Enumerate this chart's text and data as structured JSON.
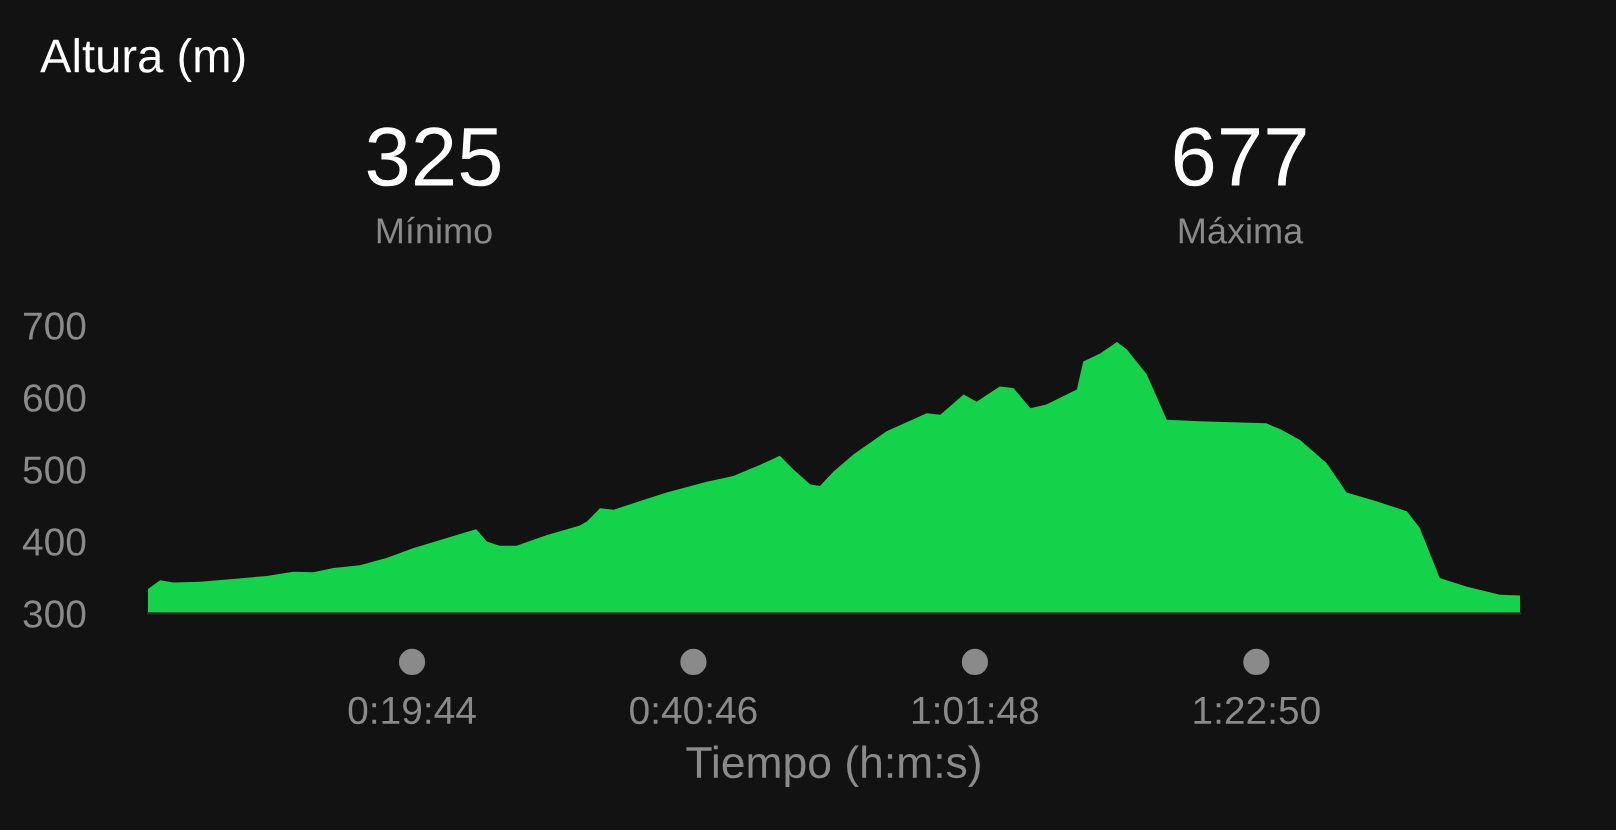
{
  "chart_data": {
    "type": "area",
    "title": "Altura (m)",
    "xlabel": "Tiempo (h:m:s)",
    "annotations": [
      "325",
      "Mínimo",
      "677",
      "Máxima"
    ],
    "series": [
      {
        "color": "#14d24a",
        "x": [
          0,
          0.015,
          0.032,
          0.065,
          0.148,
          0.181,
          0.206,
          0.231,
          0.264,
          0.297,
          0.331,
          0.364,
          0.397,
          0.409,
          0.422,
          0.438,
          0.459,
          0.497,
          0.538,
          0.547,
          0.563,
          0.58,
          0.613,
          0.646,
          0.696,
          0.729,
          0.762,
          0.787,
          0.804,
          0.825,
          0.837,
          0.854,
          0.879,
          0.92,
          0.97,
          0.987,
          1.016,
          1.032,
          1.061,
          1.078,
          1.099,
          1.119,
          1.157,
          1.165,
          1.186,
          1.207,
          1.219,
          1.244,
          1.269,
          1.31,
          1.393,
          1.41,
          1.435,
          1.468,
          1.493,
          1.526,
          1.568,
          1.584,
          1.609,
          1.643,
          1.684,
          1.709
        ],
        "values": [
          334,
          346,
          343,
          344,
          352,
          358,
          357,
          363,
          367,
          377,
          391,
          402,
          413,
          417,
          400,
          394,
          394,
          409,
          422,
          428,
          446,
          444,
          456,
          468,
          483,
          491,
          506,
          519,
          500,
          479,
          477,
          497,
          521,
          553,
          578,
          576,
          604,
          594,
          615,
          613,
          585,
          590,
          611,
          650,
          661,
          677,
          667,
          632,
          569,
          567,
          564,
          556,
          541,
          509,
          468,
          457,
          442,
          419,
          349,
          337,
          326,
          325
        ]
      }
    ],
    "xlim": [
      0,
      1.709
    ],
    "ylim": [
      300,
      700
    ],
    "xticks": [
      {
        "value": 0.3289,
        "label": "0:19:44"
      },
      {
        "value": 0.6794,
        "label": "0:40:46"
      },
      {
        "value": 1.03,
        "label": "1:01:48"
      },
      {
        "value": 1.3806,
        "label": "1:22:50"
      }
    ],
    "yticks": [
      300,
      400,
      500,
      600,
      700
    ],
    "grid": false,
    "legend": false
  }
}
